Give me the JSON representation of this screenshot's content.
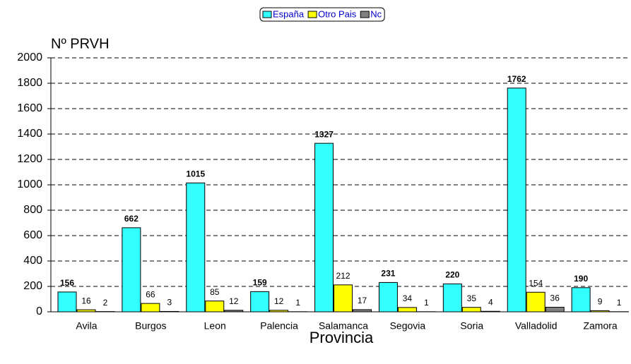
{
  "chart_data": {
    "type": "bar",
    "ylabel": "Nº PRVH",
    "xlabel": "Provincia",
    "categories": [
      "Avila",
      "Burgos",
      "Leon",
      "Palencia",
      "Salamanca",
      "Segovia",
      "Soria",
      "Valladolid",
      "Zamora"
    ],
    "series": [
      {
        "name": "España",
        "color": "#33ffff",
        "values": [
          156,
          662,
          1015,
          159,
          1327,
          231,
          220,
          1762,
          190
        ]
      },
      {
        "name": "Otro Pais",
        "color": "#ffff00",
        "values": [
          16,
          66,
          85,
          12,
          212,
          34,
          35,
          154,
          9
        ]
      },
      {
        "name": "Nc",
        "color": "#808080",
        "values": [
          2,
          3,
          12,
          1,
          17,
          1,
          4,
          36,
          1
        ]
      }
    ],
    "ylim": [
      0,
      2000
    ],
    "yticks": [
      0,
      200,
      400,
      600,
      800,
      1000,
      1200,
      1400,
      1600,
      1800,
      2000
    ],
    "grid": true,
    "legend": "top"
  }
}
